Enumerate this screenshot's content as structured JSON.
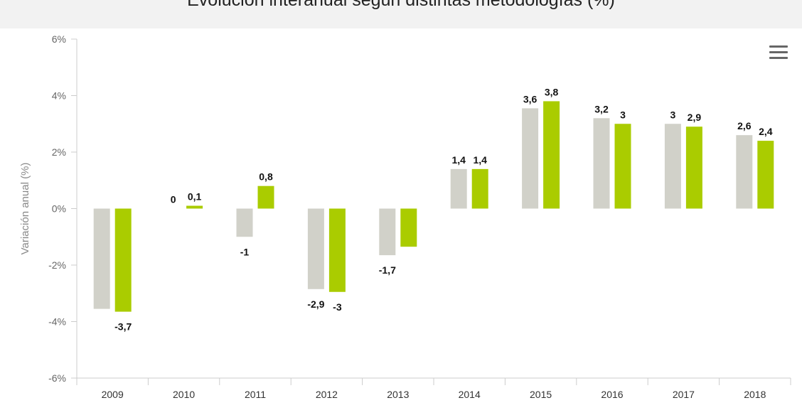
{
  "chart_data": {
    "type": "bar",
    "title": "Evolución interanual según distintas metodologías (%)",
    "ylabel": "Variación anual (%)",
    "xlabel": "",
    "categories": [
      "2009",
      "2010",
      "2011",
      "2012",
      "2013",
      "2014",
      "2015",
      "2016",
      "2017",
      "2018"
    ],
    "series": [
      {
        "color": "#d1d1c9",
        "values": [
          -3.55,
          0,
          -1,
          -2.85,
          -1.65,
          1.4,
          3.55,
          3.2,
          3,
          2.6
        ],
        "labels": [
          "",
          "0",
          "-1",
          "-2,9",
          "-1,7",
          "1,4",
          "3,6",
          "3,2",
          "3",
          "2,6"
        ]
      },
      {
        "color": "#aacc00",
        "values": [
          -3.65,
          0.1,
          0.8,
          -2.95,
          -1.35,
          1.4,
          3.8,
          3,
          2.9,
          2.4
        ],
        "labels": [
          "-3,7",
          "0,1",
          "0,8",
          "-3",
          "",
          "1,4",
          "3,8",
          "3",
          "2,9",
          "2,4"
        ]
      }
    ],
    "ylim": [
      -6,
      6
    ],
    "yticks": [
      -6,
      -4,
      -2,
      0,
      2,
      4,
      6
    ],
    "ytick_labels": [
      "-6%",
      "-4%",
      "-2%",
      "0%",
      "2%",
      "4%",
      "6%"
    ],
    "grid": false,
    "legend": "none"
  },
  "menu": {
    "icon": "hamburger-menu-icon"
  }
}
